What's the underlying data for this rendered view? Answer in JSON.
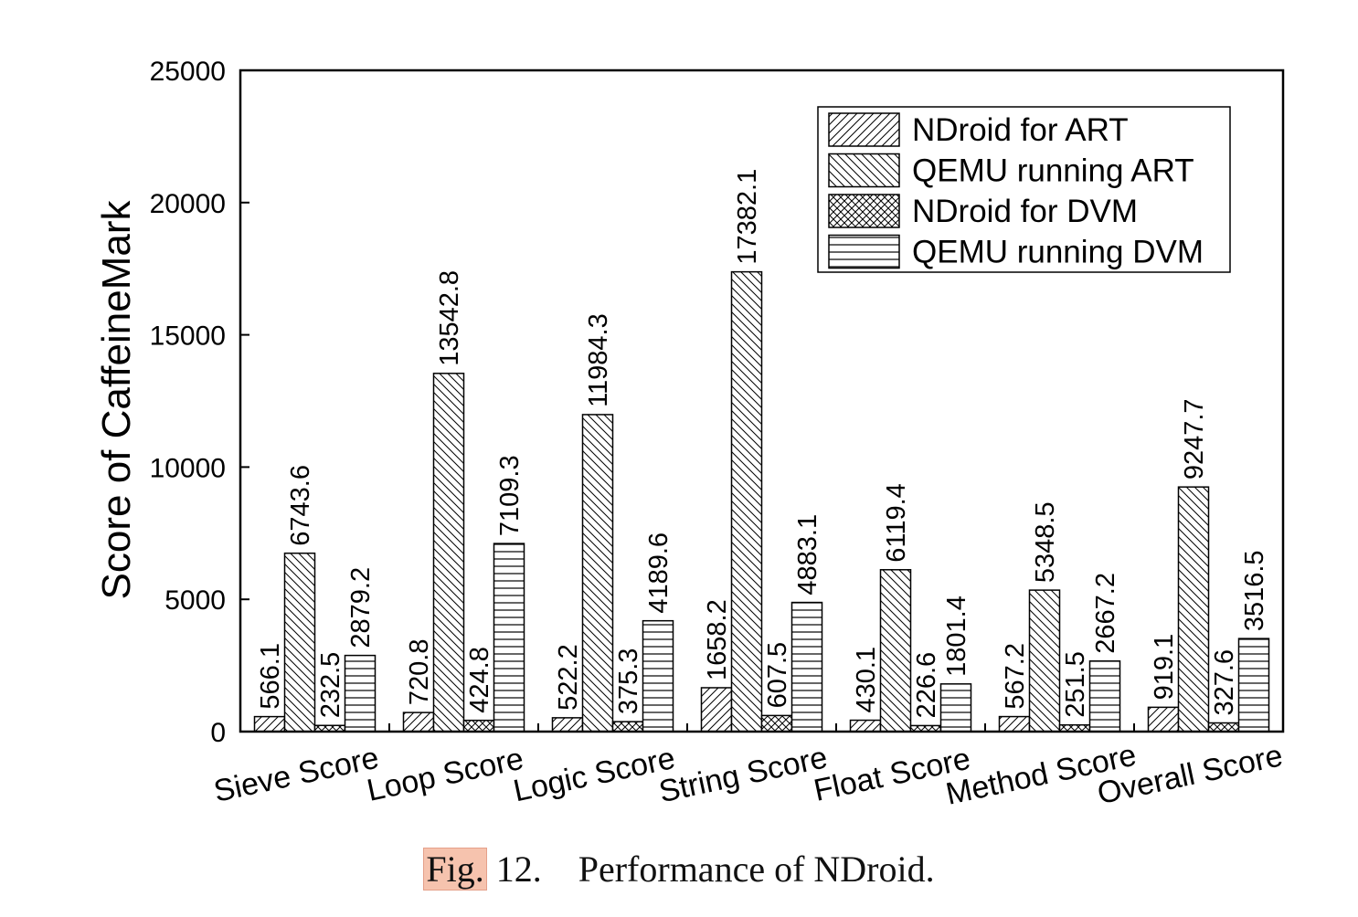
{
  "chart_data": {
    "type": "bar",
    "ylabel": "Score of CaffeineMark",
    "xlabel": "",
    "ylim": [
      0,
      25000
    ],
    "yticks": [
      0,
      5000,
      10000,
      15000,
      20000,
      25000
    ],
    "grid": false,
    "legend_position": "top-right",
    "categories": [
      "Sieve Score",
      "Loop Score",
      "Logic Score",
      "String Score",
      "Float Score",
      "Method Score",
      "Overall Score"
    ],
    "series": [
      {
        "name": "NDroid for ART",
        "pattern": "diagonal-forward",
        "values": [
          566.1,
          720.8,
          522.2,
          1658.2,
          430.1,
          567.2,
          919.1
        ],
        "labels": [
          "566.1",
          "720.8",
          "522.2",
          "1658.2",
          "430.1",
          "567.2",
          "919.1"
        ]
      },
      {
        "name": "QEMU running ART",
        "pattern": "diagonal-backward",
        "values": [
          6743.6,
          13542.8,
          11984.3,
          17382.1,
          6119.4,
          5348.5,
          9247.7
        ],
        "labels": [
          "6743.6",
          "13542.8",
          "11984.3",
          "17382.1",
          "6119.4",
          "5348.5",
          "9247.7"
        ]
      },
      {
        "name": "NDroid for DVM",
        "pattern": "crosshatch",
        "values": [
          232.5,
          424.8,
          375.3,
          607.5,
          226.6,
          251.5,
          327.6
        ],
        "labels": [
          "232.5",
          "424.8",
          "375.3",
          "607.5",
          "226.6",
          "251.5",
          "327.6"
        ]
      },
      {
        "name": "QEMU running DVM",
        "pattern": "horizontal",
        "values": [
          2879.2,
          7109.3,
          4189.6,
          4883.1,
          1801.4,
          2667.2,
          3516.5
        ],
        "labels": [
          "2879.2",
          "7109.3",
          "4189.6",
          "4883.1",
          "1801.4",
          "2667.2",
          "3516.5"
        ]
      }
    ]
  },
  "caption": {
    "fig_label": "Fig.",
    "number": " 12.",
    "text": "Performance of NDroid."
  }
}
